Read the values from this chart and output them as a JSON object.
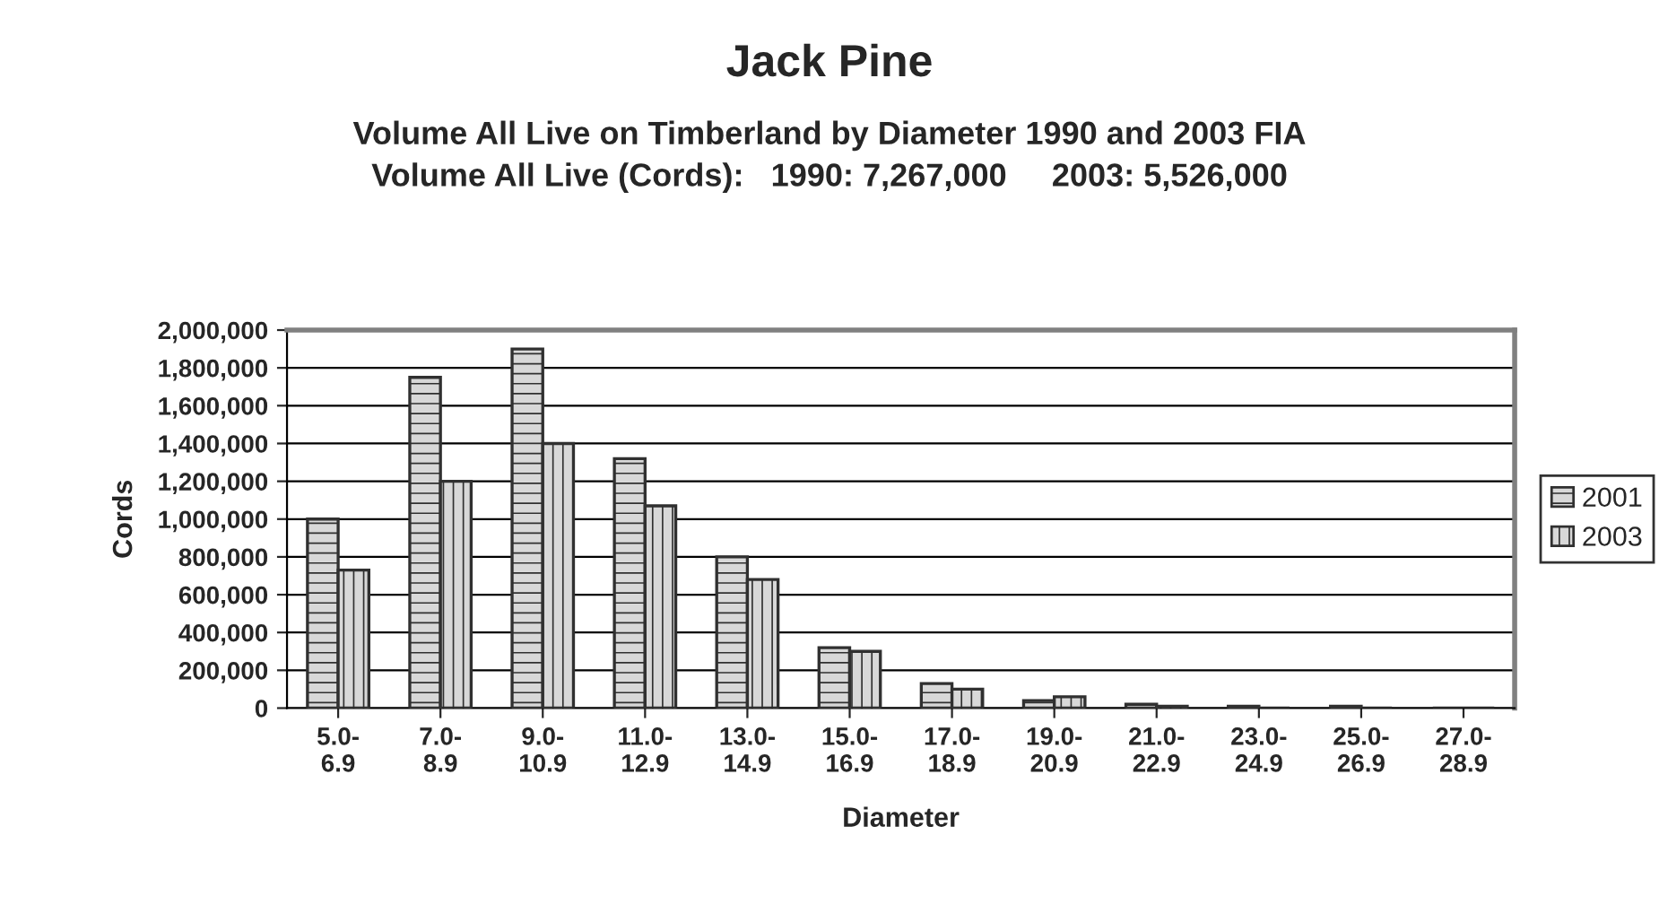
{
  "chart_data": {
    "type": "bar",
    "title": "Jack Pine",
    "subtitle": "Volume All Live on Timberland by Diameter 1990 and 2003 FIA\nVolume All Live (Cords):   1990: 7,267,000     2003: 5,526,000",
    "xlabel": "Diameter",
    "ylabel": "Cords",
    "categories": [
      "5.0-\n6.9",
      "7.0-\n8.9",
      "9.0-\n10.9",
      "11.0-\n12.9",
      "13.0-\n14.9",
      "15.0-\n16.9",
      "17.0-\n18.9",
      "19.0-\n20.9",
      "21.0-\n22.9",
      "23.0-\n24.9",
      "25.0-\n26.9",
      "27.0-\n28.9"
    ],
    "series": [
      {
        "name": "2001",
        "color": "#303030",
        "values": [
          1000000,
          1750000,
          1900000,
          1320000,
          800000,
          320000,
          130000,
          40000,
          20000,
          10000,
          10000,
          0
        ]
      },
      {
        "name": "2003",
        "color": "#303030",
        "values": [
          730000,
          1200000,
          1400000,
          1070000,
          680000,
          300000,
          100000,
          60000,
          10000,
          0,
          0,
          0
        ]
      }
    ],
    "ylim": [
      0,
      2000000
    ],
    "yticks": [
      {
        "value": 0,
        "label": "0"
      },
      {
        "value": 200000,
        "label": "200,000"
      },
      {
        "value": 400000,
        "label": "400,000"
      },
      {
        "value": 600000,
        "label": "600,000"
      },
      {
        "value": 800000,
        "label": "800,000"
      },
      {
        "value": 1000000,
        "label": "1,000,000"
      },
      {
        "value": 1200000,
        "label": "1,200,000"
      },
      {
        "value": 1400000,
        "label": "1,400,000"
      },
      {
        "value": 1600000,
        "label": "1,600,000"
      },
      {
        "value": 1800000,
        "label": "1,800,000"
      },
      {
        "value": 2000000,
        "label": "2,000,000"
      }
    ],
    "grid": "y",
    "legend": "right"
  }
}
